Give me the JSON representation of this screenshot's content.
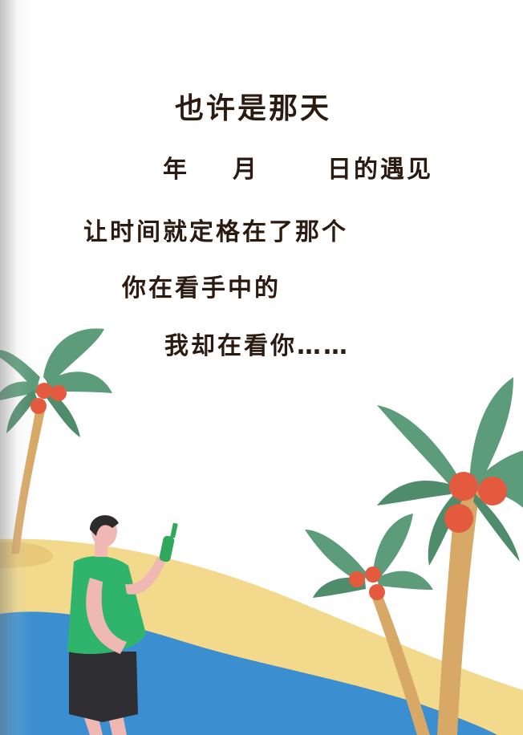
{
  "poem": {
    "title": "也许是那天",
    "date": {
      "year": "年",
      "month": "月",
      "day": "日的遇见"
    },
    "line3": "让时间就定格在了那个",
    "line4": "你在看手中的",
    "line5": "我却在看你……"
  },
  "colors": {
    "sand": "#f3d98b",
    "sea": "#3b8fd0",
    "leaf": "#5c9c7a",
    "trunk": "#d8a866",
    "coconut": "#e45a3e",
    "shirt": "#2fb56b",
    "text": "#2b1a10"
  },
  "icons": [
    "palm-tree-icon",
    "bottle-icon"
  ]
}
